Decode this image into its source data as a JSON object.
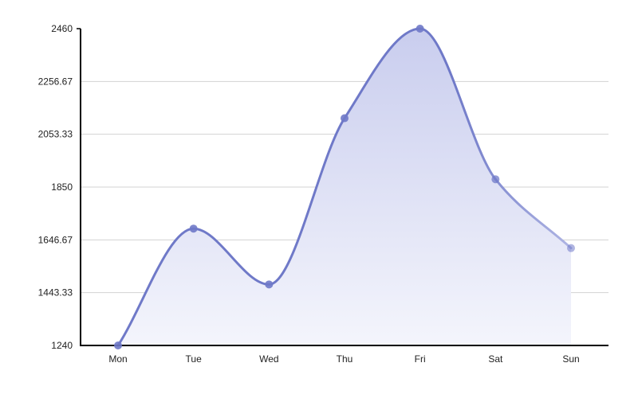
{
  "chart_data": {
    "type": "area",
    "categories": [
      "Mon",
      "Tue",
      "Wed",
      "Thu",
      "Fri",
      "Sat",
      "Sun"
    ],
    "series": [
      {
        "values": [
          1240,
          1690,
          1475,
          2115,
          2460,
          1880,
          1615
        ]
      }
    ],
    "ylim": [
      1240,
      2460
    ],
    "yticks": [
      "1240",
      "1443.33",
      "1646.67",
      "1850",
      "2053.33",
      "2256.67",
      "2460"
    ],
    "grid": true,
    "legend": "none",
    "colors": {
      "line": "#6f79c8",
      "line_fade": "#c3c8ec",
      "point": "#6f79c8",
      "fill_top": "#c9cdee",
      "fill_bottom": "#f4f5fc",
      "grid": "#d3d3d3",
      "axis": "#000000"
    }
  }
}
